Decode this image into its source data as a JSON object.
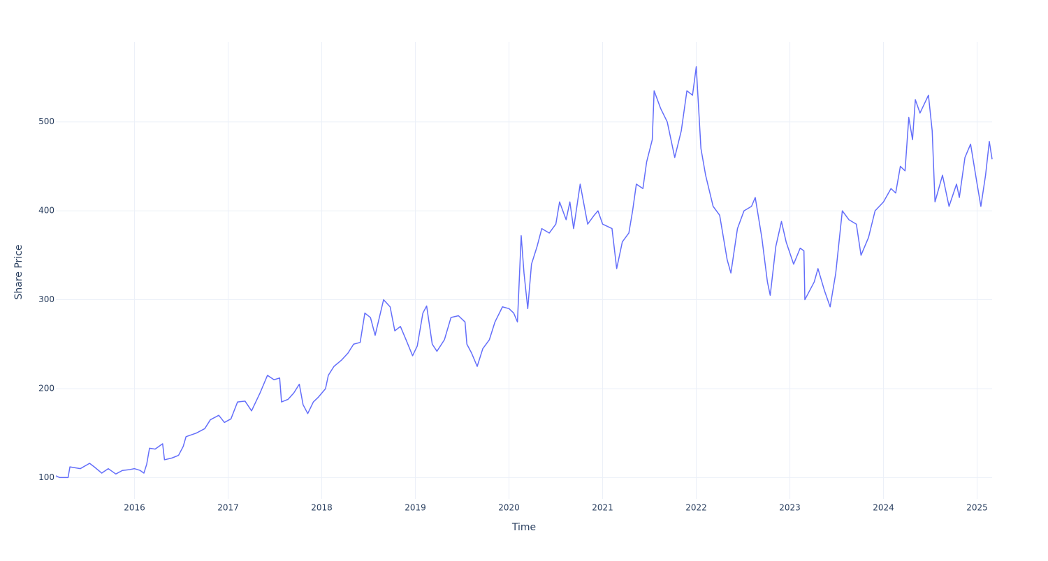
{
  "chart_data": {
    "type": "line",
    "xlabel": "Time",
    "ylabel": "Share Price",
    "x": [
      2015.16,
      2015.2,
      2015.29,
      2015.31,
      2015.42,
      2015.52,
      2015.57,
      2015.65,
      2015.72,
      2015.8,
      2015.87,
      2015.95,
      2016.0,
      2016.06,
      2016.1,
      2016.13,
      2016.16,
      2016.22,
      2016.3,
      2016.32,
      2016.4,
      2016.47,
      2016.52,
      2016.55,
      2016.66,
      2016.75,
      2016.81,
      2016.9,
      2016.96,
      2017.03,
      2017.1,
      2017.18,
      2017.25,
      2017.34,
      2017.42,
      2017.49,
      2017.55,
      2017.57,
      2017.64,
      2017.7,
      2017.76,
      2017.8,
      2017.85,
      2017.91,
      2017.96,
      2018.04,
      2018.07,
      2018.13,
      2018.21,
      2018.28,
      2018.34,
      2018.41,
      2018.46,
      2018.52,
      2018.57,
      2018.66,
      2018.73,
      2018.78,
      2018.84,
      2018.9,
      2018.97,
      2019.02,
      2019.08,
      2019.12,
      2019.18,
      2019.23,
      2019.31,
      2019.38,
      2019.46,
      2019.53,
      2019.55,
      2019.6,
      2019.66,
      2019.72,
      2019.79,
      2019.85,
      2019.93,
      2020.0,
      2020.05,
      2020.09,
      2020.13,
      2020.16,
      2020.2,
      2020.24,
      2020.3,
      2020.35,
      2020.43,
      2020.5,
      2020.54,
      2020.61,
      2020.65,
      2020.69,
      2020.76,
      2020.84,
      2020.91,
      2020.95,
      2021.0,
      2021.1,
      2021.15,
      2021.21,
      2021.28,
      2021.32,
      2021.36,
      2021.43,
      2021.47,
      2021.53,
      2021.55,
      2021.62,
      2021.69,
      2021.77,
      2021.84,
      2021.9,
      2021.96,
      2022.0,
      2022.05,
      2022.1,
      2022.18,
      2022.25,
      2022.33,
      2022.37,
      2022.44,
      2022.51,
      2022.59,
      2022.63,
      2022.7,
      2022.76,
      2022.79,
      2022.85,
      2022.91,
      2022.96,
      2023.04,
      2023.11,
      2023.15,
      2023.16,
      2023.26,
      2023.3,
      2023.37,
      2023.43,
      2023.49,
      2023.56,
      2023.63,
      2023.71,
      2023.76,
      2023.84,
      2023.91,
      2024.0,
      2024.08,
      2024.13,
      2024.18,
      2024.23,
      2024.27,
      2024.31,
      2024.34,
      2024.39,
      2024.48,
      2024.52,
      2024.55,
      2024.63,
      2024.7,
      2024.78,
      2024.81,
      2024.87,
      2024.93,
      2025.0,
      2025.04,
      2025.09,
      2025.13,
      2025.16
    ],
    "series": [
      {
        "name": "Share Price",
        "color": "#636efa",
        "values": [
          102,
          100,
          100,
          112,
          110,
          116,
          112,
          105,
          110,
          104,
          108,
          109,
          110,
          108,
          105,
          115,
          133,
          132,
          138,
          120,
          122,
          125,
          135,
          146,
          150,
          155,
          165,
          170,
          162,
          166,
          185,
          186,
          175,
          195,
          215,
          210,
          212,
          185,
          188,
          195,
          205,
          182,
          172,
          185,
          190,
          200,
          215,
          225,
          232,
          240,
          250,
          252,
          285,
          280,
          260,
          300,
          292,
          265,
          270,
          255,
          237,
          248,
          285,
          293,
          250,
          242,
          255,
          280,
          282,
          275,
          250,
          240,
          225,
          245,
          255,
          275,
          292,
          290,
          285,
          275,
          372,
          330,
          290,
          340,
          360,
          380,
          375,
          385,
          410,
          390,
          410,
          380,
          430,
          385,
          395,
          400,
          385,
          380,
          335,
          365,
          375,
          400,
          430,
          425,
          455,
          480,
          535,
          515,
          500,
          460,
          490,
          535,
          530,
          562,
          470,
          440,
          405,
          395,
          345,
          330,
          380,
          400,
          405,
          415,
          370,
          320,
          305,
          360,
          388,
          365,
          340,
          358,
          355,
          300,
          320,
          335,
          310,
          292,
          330,
          400,
          390,
          385,
          350,
          370,
          400,
          410,
          425,
          420,
          450,
          445,
          505,
          480,
          525,
          510,
          530,
          490,
          410,
          440,
          405,
          430,
          415,
          460,
          475,
          430,
          405,
          440,
          478,
          458
        ]
      }
    ],
    "xlim": [
      2015.16,
      2025.16
    ],
    "xticks": [
      2016,
      2017,
      2018,
      2019,
      2020,
      2021,
      2022,
      2023,
      2024,
      2025
    ],
    "ylim": [
      76,
      590
    ],
    "yticks": [
      100,
      200,
      300,
      400,
      500
    ],
    "grid": true
  }
}
